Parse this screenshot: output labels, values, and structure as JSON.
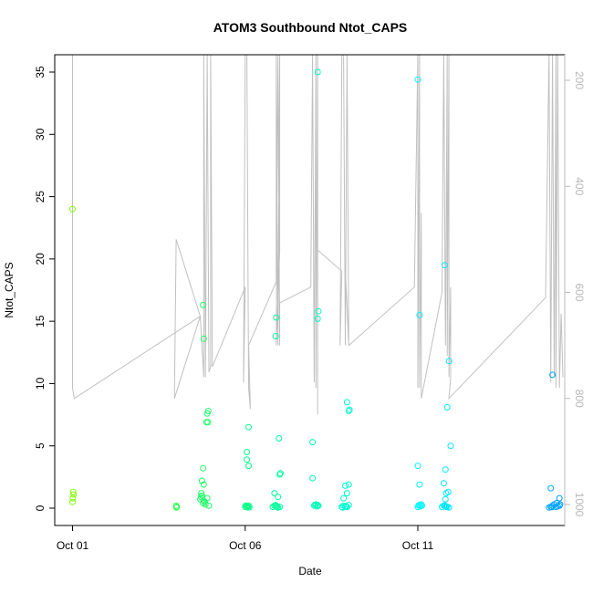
{
  "chart_data": {
    "type": "scatter",
    "title": "ATOM3 Southbound Ntot_CAPS",
    "xlabel": "Date",
    "ylabel": "Ntot_CAPS",
    "x_ticks": [
      {
        "label": "Oct 01",
        "day": 1
      },
      {
        "label": "Oct 06",
        "day": 6
      },
      {
        "label": "Oct 11",
        "day": 11
      }
    ],
    "xlim_days": [
      1,
      15.5
    ],
    "ylim": [
      0,
      36
    ],
    "y_ticks": [
      0,
      5,
      10,
      15,
      20,
      25,
      30,
      35
    ],
    "y2_ticks": [
      200,
      400,
      600,
      800,
      1000
    ],
    "y2lim": [
      1030,
      150
    ],
    "grid": false,
    "legend": "none",
    "point_color_gradient": [
      "#7fff00",
      "#00ff7f",
      "#00ffff",
      "#0099ff"
    ],
    "background_trace_color": "#c0c0c0",
    "points": [
      [
        1.0,
        24.0
      ],
      [
        1.02,
        1.3
      ],
      [
        1.03,
        1.1
      ],
      [
        1.01,
        0.8
      ],
      [
        1.0,
        0.5
      ],
      [
        4.0,
        0.2
      ],
      [
        4.02,
        0.1
      ],
      [
        4.01,
        0.05
      ],
      [
        4.7,
        0.7
      ],
      [
        4.72,
        0.9
      ],
      [
        4.75,
        1.0
      ],
      [
        4.8,
        0.6
      ],
      [
        4.85,
        0.3
      ],
      [
        4.9,
        0.8
      ],
      [
        4.95,
        0.2
      ],
      [
        4.78,
        0.4
      ],
      [
        4.73,
        1.2
      ],
      [
        4.83,
        0.5
      ],
      [
        4.8,
        1.9
      ],
      [
        4.75,
        2.2
      ],
      [
        4.78,
        3.2
      ],
      [
        4.9,
        7.6
      ],
      [
        4.93,
        7.8
      ],
      [
        4.88,
        6.9
      ],
      [
        4.92,
        6.9
      ],
      [
        4.8,
        13.6
      ],
      [
        4.78,
        16.3
      ],
      [
        6.0,
        0.1
      ],
      [
        6.05,
        0.15
      ],
      [
        6.1,
        0.2
      ],
      [
        6.08,
        0.05
      ],
      [
        6.02,
        0.2
      ],
      [
        6.06,
        0.12
      ],
      [
        6.12,
        0.08
      ],
      [
        6.05,
        3.9
      ],
      [
        6.1,
        3.4
      ],
      [
        6.05,
        4.5
      ],
      [
        6.1,
        6.5
      ],
      [
        6.8,
        0.1
      ],
      [
        6.85,
        0.2
      ],
      [
        6.9,
        0.15
      ],
      [
        6.95,
        0.05
      ],
      [
        7.0,
        0.1
      ],
      [
        6.88,
        0.25
      ],
      [
        6.92,
        0.12
      ],
      [
        6.85,
        1.2
      ],
      [
        6.95,
        0.9
      ],
      [
        7.0,
        2.7
      ],
      [
        7.02,
        2.8
      ],
      [
        6.98,
        5.6
      ],
      [
        6.88,
        13.8
      ],
      [
        6.9,
        15.3
      ],
      [
        8.0,
        0.2
      ],
      [
        8.05,
        0.3
      ],
      [
        8.1,
        0.25
      ],
      [
        8.08,
        0.15
      ],
      [
        8.02,
        0.28
      ],
      [
        8.12,
        0.2
      ],
      [
        7.95,
        2.4
      ],
      [
        7.95,
        5.3
      ],
      [
        8.1,
        15.2
      ],
      [
        8.12,
        15.8
      ],
      [
        8.1,
        35.0
      ],
      [
        8.8,
        0.1
      ],
      [
        8.85,
        0.2
      ],
      [
        8.9,
        0.15
      ],
      [
        8.95,
        0.1
      ],
      [
        9.0,
        0.25
      ],
      [
        8.82,
        0.05
      ],
      [
        8.92,
        0.12
      ],
      [
        8.85,
        0.8
      ],
      [
        8.95,
        1.2
      ],
      [
        8.9,
        1.8
      ],
      [
        9.0,
        1.9
      ],
      [
        9.0,
        7.8
      ],
      [
        9.02,
        7.9
      ],
      [
        8.95,
        8.5
      ],
      [
        11.0,
        0.1
      ],
      [
        11.05,
        0.25
      ],
      [
        11.1,
        0.3
      ],
      [
        11.08,
        0.15
      ],
      [
        11.12,
        0.2
      ],
      [
        11.02,
        0.22
      ],
      [
        11.05,
        1.9
      ],
      [
        11.0,
        3.4
      ],
      [
        11.05,
        15.5
      ],
      [
        11.0,
        34.4
      ],
      [
        11.7,
        0.1
      ],
      [
        11.75,
        0.2
      ],
      [
        11.8,
        0.15
      ],
      [
        11.85,
        0.1
      ],
      [
        11.9,
        0.05
      ],
      [
        11.78,
        0.22
      ],
      [
        11.82,
        0.12
      ],
      [
        11.8,
        0.7
      ],
      [
        11.82,
        1.2
      ],
      [
        11.88,
        1.3
      ],
      [
        11.75,
        2.0
      ],
      [
        11.8,
        3.1
      ],
      [
        11.95,
        5.0
      ],
      [
        11.85,
        8.1
      ],
      [
        11.9,
        11.8
      ],
      [
        11.78,
        19.5
      ],
      [
        14.8,
        0.05
      ],
      [
        14.85,
        0.1
      ],
      [
        14.9,
        0.2
      ],
      [
        14.95,
        0.3
      ],
      [
        15.0,
        0.1
      ],
      [
        15.05,
        0.15
      ],
      [
        15.1,
        0.2
      ],
      [
        15.12,
        0.3
      ],
      [
        14.88,
        0.08
      ],
      [
        15.02,
        0.4
      ],
      [
        14.85,
        1.6
      ],
      [
        15.1,
        0.8
      ],
      [
        14.9,
        10.7
      ]
    ],
    "trace": [
      [
        1.0,
        150
      ],
      [
        1.0,
        150
      ],
      [
        1.0,
        780
      ],
      [
        1.05,
        800
      ],
      [
        4.7,
        645
      ],
      [
        4.0,
        500
      ],
      [
        3.95,
        800
      ],
      [
        4.7,
        645
      ],
      [
        4.8,
        760
      ],
      [
        4.8,
        150
      ],
      [
        4.85,
        760
      ],
      [
        4.9,
        150
      ],
      [
        4.95,
        750
      ],
      [
        5.0,
        740
      ],
      [
        5.0,
        150
      ],
      [
        5.05,
        740
      ],
      [
        6.0,
        590
      ],
      [
        5.95,
        770
      ],
      [
        6.0,
        150
      ],
      [
        6.05,
        150
      ],
      [
        6.1,
        780
      ],
      [
        6.15,
        820
      ],
      [
        6.1,
        700
      ],
      [
        6.9,
        580
      ],
      [
        6.9,
        150
      ],
      [
        6.95,
        700
      ],
      [
        7.0,
        150
      ],
      [
        7.0,
        520
      ],
      [
        6.9,
        700
      ],
      [
        6.95,
        150
      ],
      [
        7.0,
        700
      ],
      [
        7.0,
        620
      ],
      [
        7.9,
        590
      ],
      [
        7.95,
        150
      ],
      [
        8.0,
        770
      ],
      [
        8.05,
        150
      ],
      [
        8.05,
        780
      ],
      [
        8.1,
        150
      ],
      [
        8.1,
        830
      ],
      [
        8.1,
        520
      ],
      [
        8.8,
        560
      ],
      [
        8.75,
        700
      ],
      [
        8.8,
        150
      ],
      [
        8.85,
        150
      ],
      [
        8.9,
        700
      ],
      [
        8.95,
        150
      ],
      [
        9.0,
        690
      ],
      [
        8.9,
        560
      ],
      [
        9.0,
        700
      ],
      [
        10.9,
        590
      ],
      [
        11.0,
        150
      ],
      [
        11.0,
        780
      ],
      [
        11.05,
        150
      ],
      [
        11.05,
        780
      ],
      [
        11.1,
        450
      ],
      [
        11.1,
        800
      ],
      [
        11.7,
        600
      ],
      [
        11.75,
        150
      ],
      [
        11.8,
        700
      ],
      [
        11.85,
        150
      ],
      [
        11.85,
        720
      ],
      [
        11.9,
        150
      ],
      [
        11.9,
        760
      ],
      [
        11.95,
        590
      ],
      [
        11.95,
        760
      ],
      [
        11.9,
        800
      ],
      [
        14.7,
        610
      ],
      [
        14.8,
        150
      ],
      [
        14.85,
        770
      ],
      [
        14.9,
        150
      ],
      [
        14.95,
        760
      ],
      [
        15.0,
        150
      ],
      [
        15.0,
        780
      ],
      [
        15.05,
        150
      ],
      [
        15.1,
        780
      ],
      [
        15.15,
        640
      ],
      [
        15.2,
        760
      ]
    ]
  }
}
